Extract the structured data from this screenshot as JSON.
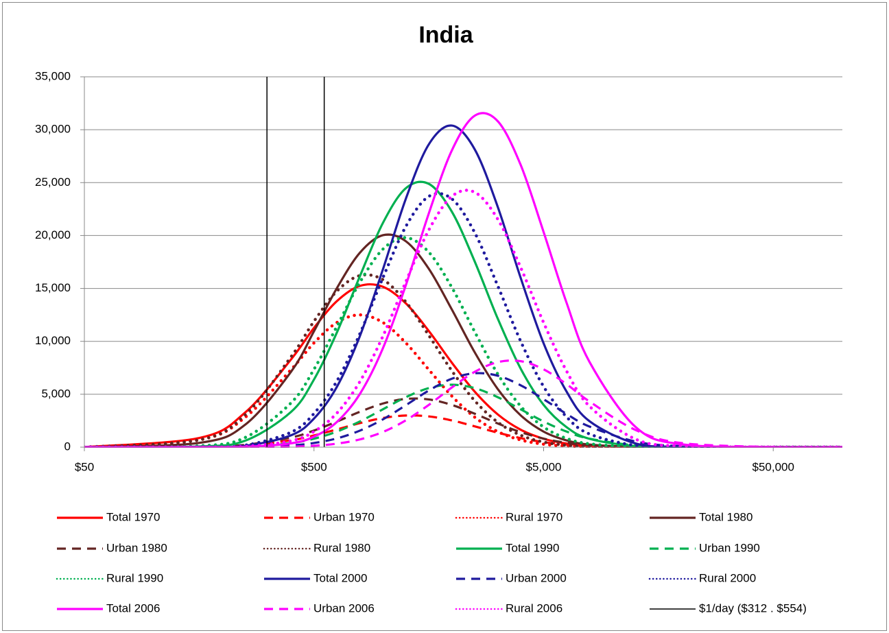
{
  "chart_data": {
    "type": "line",
    "title": "India",
    "x_scale": "log",
    "xlim": [
      50,
      100000
    ],
    "ylim": [
      0,
      35000
    ],
    "xticks": [
      {
        "value": 50,
        "label": "$50"
      },
      {
        "value": 500,
        "label": "$500"
      },
      {
        "value": 5000,
        "label": "$5,000"
      },
      {
        "value": 50000,
        "label": "$50,000"
      }
    ],
    "yticks": [
      0,
      {
        "value": 5000,
        "label": "5,000"
      },
      {
        "value": 10000,
        "label": "10,000"
      },
      {
        "value": 15000,
        "label": "15,000"
      },
      {
        "value": 20000,
        "label": "20,000"
      },
      {
        "value": 25000,
        "label": "25,000"
      },
      {
        "value": 30000,
        "label": "30,000"
      },
      {
        "value": 35000,
        "label": "35,000"
      }
    ],
    "grid": true,
    "legend": "bottom",
    "x": [
      50,
      158,
      251,
      397,
      500,
      629,
      792,
      998,
      1256,
      1581,
      1991,
      2506,
      3155,
      3972,
      5000,
      6295,
      7924,
      12559,
      19905,
      50000,
      100000
    ],
    "series": [
      {
        "name": "Total 1970",
        "color": "#ff0000",
        "line_style": "solid",
        "values": [
          5,
          866,
          3287,
          8290,
          11270,
          13800,
          15240,
          15160,
          13590,
          10980,
          7990,
          5245,
          3100,
          1650,
          795,
          345,
          135,
          15,
          1,
          0,
          0
        ]
      },
      {
        "name": "Urban 1970",
        "color": "#ff0000",
        "line_style": "dash",
        "values": [
          0,
          26,
          163,
          652,
          1104,
          1675,
          2270,
          2755,
          2990,
          2905,
          2526,
          1965,
          1368,
          852,
          475,
          237,
          106,
          15,
          1,
          0,
          0
        ]
      },
      {
        "name": "Rural 1970",
        "color": "#ff0000",
        "line_style": "dot",
        "values": [
          2,
          679,
          2829,
          7320,
          9850,
          11780,
          12500,
          11780,
          9850,
          7320,
          4830,
          2829,
          1470,
          679,
          278,
          101,
          33,
          2,
          0,
          0,
          0
        ]
      },
      {
        "name": "Total 1980",
        "color": "#632523",
        "line_style": "solid",
        "values": [
          0,
          402,
          2130,
          7120,
          10955,
          15025,
          18370,
          20030,
          19460,
          16860,
          13020,
          8960,
          5500,
          3007,
          1467,
          637,
          247,
          26,
          0,
          0,
          0
        ]
      },
      {
        "name": "Urban 1980",
        "color": "#632523",
        "line_style": "dash",
        "values": [
          0,
          34,
          219,
          910,
          1568,
          2421,
          3340,
          4125,
          4559,
          4509,
          3992,
          3160,
          2240,
          1421,
          805,
          409,
          186,
          28,
          3,
          0,
          0
        ]
      },
      {
        "name": "Rural 1980",
        "color": "#632523",
        "line_style": "dot",
        "values": [
          1,
          686,
          3067,
          8533,
          11896,
          14742,
          16213,
          15834,
          13727,
          10566,
          7222,
          4385,
          2362,
          1130,
          480,
          181,
          61,
          5,
          0,
          0,
          0
        ]
      },
      {
        "name": "Total 1990",
        "color": "#00b050",
        "line_style": "solid",
        "values": [
          0,
          68,
          613,
          3323,
          6393,
          10836,
          16150,
          21190,
          24470,
          24882,
          22264,
          17545,
          12160,
          7425,
          3991,
          1888,
          786,
          93,
          7,
          0,
          0
        ]
      },
      {
        "name": "Urban 1990",
        "color": "#00b050",
        "line_style": "dash",
        "values": [
          0,
          7,
          65,
          388,
          798,
          1471,
          2426,
          3578,
          4724,
          5582,
          5900,
          5582,
          4724,
          3578,
          2426,
          1471,
          798,
          169,
          23,
          0,
          0
        ]
      },
      {
        "name": "Rural 1990",
        "color": "#00b050",
        "line_style": "dot",
        "values": [
          0,
          121,
          917,
          4178,
          7358,
          11410,
          15575,
          18711,
          19796,
          18428,
          15104,
          10898,
          6922,
          3869,
          1903,
          826,
          315,
          31,
          2,
          0,
          0
        ]
      },
      {
        "name": "Total 2000",
        "color": "#1f1a9e",
        "line_style": "solid",
        "values": [
          0,
          8,
          127,
          1119,
          2703,
          5700,
          10490,
          16800,
          23478,
          28612,
          30393,
          28143,
          22724,
          16000,
          9810,
          5250,
          2450,
          353,
          29,
          0,
          0
        ]
      },
      {
        "name": "Urban 2000",
        "color": "#1f1a9e",
        "line_style": "dash",
        "values": [
          0,
          0,
          22,
          167,
          393,
          827,
          1559,
          2627,
          3962,
          5349,
          6462,
          6984,
          6753,
          5847,
          4529,
          3137,
          1946,
          536,
          95,
          1,
          0
        ]
      },
      {
        "name": "Rural 2000",
        "color": "#1f1a9e",
        "line_style": "dot",
        "values": [
          0,
          14,
          184,
          1408,
          3178,
          6245,
          10711,
          16008,
          20857,
          23698,
          23470,
          20270,
          15257,
          10015,
          5726,
          2857,
          1244,
          156,
          11,
          0,
          0
        ]
      },
      {
        "name": "Total 2006",
        "color": "#ff00ff",
        "line_style": "solid",
        "values": [
          0,
          2,
          33,
          363,
          989,
          2376,
          5024,
          9347,
          15307,
          22088,
          28029,
          31325,
          30810,
          26677,
          20331,
          13642,
          8049,
          1915,
          274,
          1,
          0
        ]
      },
      {
        "name": "Urban 2006",
        "color": "#ff00ff",
        "line_style": "dash",
        "values": [
          0,
          0,
          5,
          49,
          134,
          331,
          729,
          1435,
          2534,
          3993,
          5633,
          7118,
          8036,
          8126,
          7355,
          5953,
          4313,
          1624,
          391,
          6,
          0
        ]
      },
      {
        "name": "Rural 2006",
        "color": "#ff00ff",
        "line_style": "dot",
        "values": [
          0,
          4,
          66,
          593,
          1473,
          3217,
          6189,
          10490,
          15635,
          20514,
          23693,
          24089,
          21554,
          16986,
          11771,
          7188,
          3864,
          761,
          90,
          0,
          0
        ]
      },
      {
        "name": "$1/day ($312 . $554)",
        "color": "#000000",
        "line_style": "thin",
        "x": [
          312,
          312,
          null,
          554,
          554
        ],
        "values": [
          0,
          35000,
          null,
          0,
          35000
        ]
      }
    ]
  }
}
